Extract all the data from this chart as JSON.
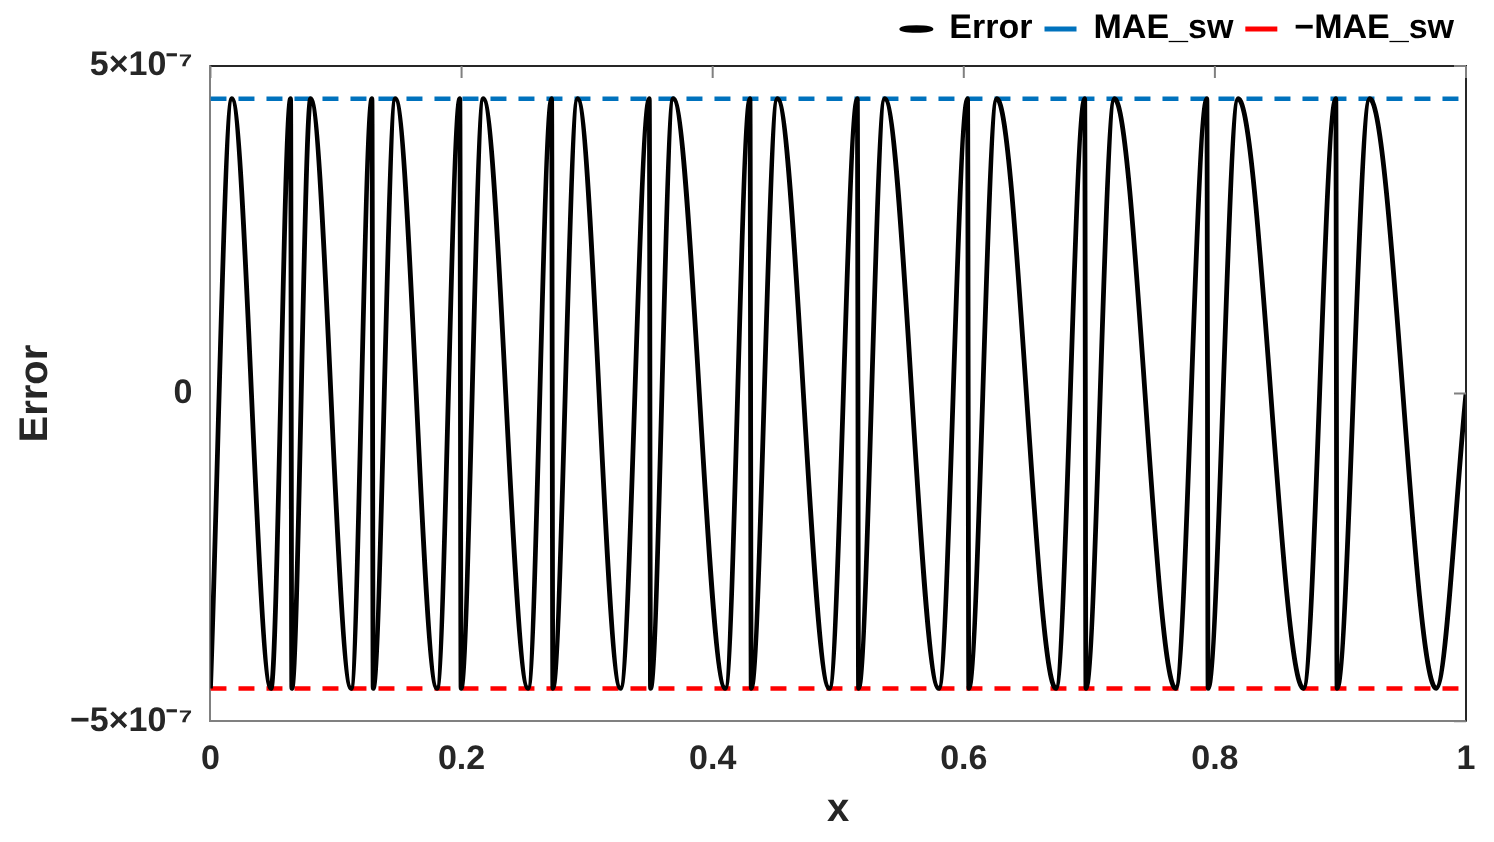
{
  "chart_data": {
    "type": "line",
    "xlabel": "x",
    "ylabel": "Error",
    "xlim": [
      0,
      1
    ],
    "xticks": [
      0,
      0.2,
      0.4,
      0.6,
      0.8,
      1
    ],
    "ylim": [
      -5e-07,
      5e-07
    ],
    "yticks": [
      {
        "value": -5e-07,
        "label": "−5×10⁻⁷"
      },
      0,
      {
        "value": 5e-07,
        "label": "5×10⁻⁷"
      }
    ],
    "legend": "top right",
    "grid": false,
    "series": [
      {
        "name": "Error",
        "color": "#000000",
        "marker": "none",
        "line_style": "solid",
        "x": [
          0,
          0.0171,
          0.0482,
          0.0638,
          0.0648,
          0.0798,
          0.112,
          0.1286,
          0.1296,
          0.1473,
          0.1804,
          0.1986,
          0.1996,
          0.2173,
          0.253,
          0.2717,
          0.2727,
          0.2924,
          0.3266,
          0.3495,
          0.3505,
          0.3686,
          0.4101,
          0.4297,
          0.4307,
          0.4515,
          0.493,
          0.5152,
          0.5162,
          0.537,
          0.5801,
          0.603,
          0.604,
          0.6263,
          0.6734,
          0.6963,
          0.6973,
          0.72,
          0.7687,
          0.7936,
          0.7946,
          0.8185,
          0.8705,
          0.8963,
          0.8973,
          0.9233,
          0.9762,
          1
        ],
        "values": [
          -4.5e-07,
          4.5e-07,
          -4.5e-07,
          4.5e-07,
          -4.5e-07,
          4.5e-07,
          -4.5e-07,
          4.5e-07,
          -4.5e-07,
          4.5e-07,
          -4.5e-07,
          4.5e-07,
          -4.5e-07,
          4.5e-07,
          -4.5e-07,
          4.5e-07,
          -4.5e-07,
          4.5e-07,
          -4.5e-07,
          4.5e-07,
          -4.5e-07,
          4.5e-07,
          -4.5e-07,
          4.5e-07,
          -4.5e-07,
          4.5e-07,
          -4.5e-07,
          4.5e-07,
          -4.5e-07,
          4.5e-07,
          -4.5e-07,
          4.5e-07,
          -4.5e-07,
          4.5e-07,
          -4.5e-07,
          4.5e-07,
          -4.5e-07,
          4.5e-07,
          -4.5e-07,
          4.5e-07,
          -4.5e-07,
          4.5e-07,
          -4.5e-07,
          4.5e-07,
          -4.5e-07,
          4.5e-07,
          -4.5e-07,
          0
        ]
      },
      {
        "name": "MAE_sw",
        "color": "#0072bd",
        "line_style": "dashed",
        "marker": "none",
        "x": [
          0,
          1
        ],
        "values": [
          4.5e-07,
          4.5e-07
        ]
      },
      {
        "name": "−MAE_sw",
        "color": "#ff0000",
        "line_style": "dashed",
        "marker": "none",
        "x": [
          0,
          1
        ],
        "values": [
          -4.5e-07,
          -4.5e-07
        ]
      }
    ]
  }
}
